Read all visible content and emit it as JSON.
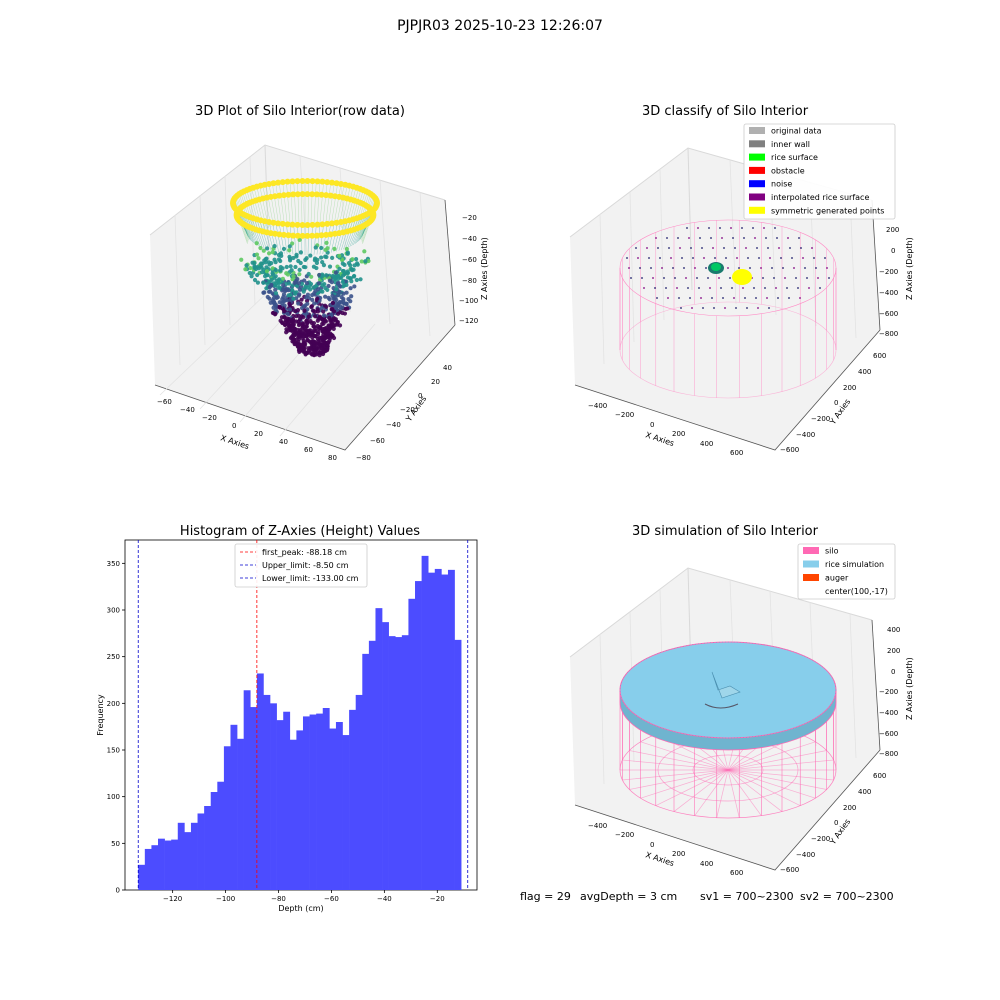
{
  "figure": {
    "suptitle": "PJPJR03 2025-10-23 12:26:07",
    "status": {
      "flag": "flag = 29",
      "avg_depth": "avgDepth = 3 cm",
      "sv1": "sv1 = 700~2300",
      "sv2": "sv2 = 700~2300"
    }
  },
  "panels": {
    "raw": {
      "title": "3D Plot of Silo Interior(row data)",
      "xlabel": "X Axies",
      "ylabel": "Y Axies",
      "zlabel": "Z Axies (Depth)",
      "x_ticks": [
        "−60",
        "−40",
        "−20",
        "0",
        "20",
        "40",
        "60",
        "80"
      ],
      "y_ticks": [
        "40",
        "20",
        "0",
        "−20",
        "−40",
        "−60",
        "−80"
      ],
      "z_ticks": [
        "−20",
        "−40",
        "−60",
        "−80",
        "−100",
        "−120"
      ],
      "colormap": [
        "#440154",
        "#3b528b",
        "#21918c",
        "#5ec962",
        "#fde725"
      ]
    },
    "classify": {
      "title": "3D classify of Silo Interior",
      "xlabel": "X Axies",
      "ylabel": "Y Axies",
      "zlabel": "Z Axies (Depth)",
      "x_ticks": [
        "−400",
        "−200",
        "0",
        "200",
        "400",
        "600"
      ],
      "y_ticks": [
        "600",
        "400",
        "200",
        "0",
        "−200",
        "−400",
        "−600"
      ],
      "z_ticks": [
        "200",
        "0",
        "−200",
        "−400",
        "−600",
        "−800"
      ],
      "legend": [
        {
          "label": "original data",
          "color": "#b0b0b0"
        },
        {
          "label": "inner wall",
          "color": "#808080"
        },
        {
          "label": "rice surface",
          "color": "#00ff00"
        },
        {
          "label": "obstacle",
          "color": "#ff0000"
        },
        {
          "label": "noise",
          "color": "#0000ff"
        },
        {
          "label": "interpolated rice surface",
          "color": "#800080"
        },
        {
          "label": "symmetric generated points",
          "color": "#ffff00"
        }
      ]
    },
    "histogram": {
      "title": "Histogram of Z-Axies (Height) Values",
      "xlabel": "Depth (cm)",
      "ylabel": "Frequency",
      "legend": [
        {
          "label": "first_peak: -88.18 cm",
          "color": "#ff0000"
        },
        {
          "label": "Upper_limit: -8.50 cm",
          "color": "#0000cc"
        },
        {
          "label": "Lower_limit: -133.00 cm",
          "color": "#0000cc"
        }
      ]
    },
    "simulation": {
      "title": "3D simulation of Silo Interior",
      "xlabel": "X Axies",
      "ylabel": "Y Axies",
      "zlabel": "Z Axies (Depth)",
      "x_ticks": [
        "−400",
        "−200",
        "0",
        "200",
        "400",
        "600"
      ],
      "y_ticks": [
        "600",
        "400",
        "200",
        "0",
        "−200",
        "−400",
        "−600"
      ],
      "z_ticks": [
        "400",
        "200",
        "0",
        "−200",
        "−400",
        "−600",
        "−800"
      ],
      "legend": [
        {
          "label": "silo",
          "color": "#ff69b4"
        },
        {
          "label": "rice simulation",
          "color": "#87ceeb"
        },
        {
          "label": "auger",
          "color": "#ff4500"
        },
        {
          "label": "center(100,-17)",
          "color": ""
        }
      ]
    }
  },
  "chart_data": {
    "type": "bar",
    "title": "Histogram of Z-Axies (Height) Values",
    "xlabel": "Depth (cm)",
    "ylabel": "Frequency",
    "xlim": [
      -138,
      -5
    ],
    "ylim": [
      0,
      375
    ],
    "x_ticks": [
      -120,
      -100,
      -80,
      -60,
      -40,
      -20
    ],
    "y_ticks": [
      0,
      50,
      100,
      150,
      200,
      250,
      300,
      350
    ],
    "bar_color": "#4c4cff",
    "bin_start": -133.0,
    "bin_width": 2.49,
    "values": [
      27,
      44,
      48,
      55,
      53,
      54,
      72,
      62,
      72,
      82,
      90,
      105,
      116,
      154,
      177,
      162,
      214,
      196,
      232,
      209,
      200,
      182,
      191,
      161,
      171,
      186,
      188,
      189,
      195,
      173,
      180,
      166,
      193,
      209,
      253,
      267,
      302,
      287,
      272,
      271,
      273,
      312,
      331,
      358,
      340,
      344,
      338,
      343,
      268
    ],
    "vlines": [
      {
        "label": "first_peak: -88.18 cm",
        "x": -88.18,
        "color": "#ff0000"
      },
      {
        "label": "Upper_limit: -8.50 cm",
        "x": -8.5,
        "color": "#0000cc"
      },
      {
        "label": "Lower_limit: -133.00 cm",
        "x": -133.0,
        "color": "#0000cc"
      }
    ],
    "grid": false,
    "legend_position": "upper center"
  }
}
